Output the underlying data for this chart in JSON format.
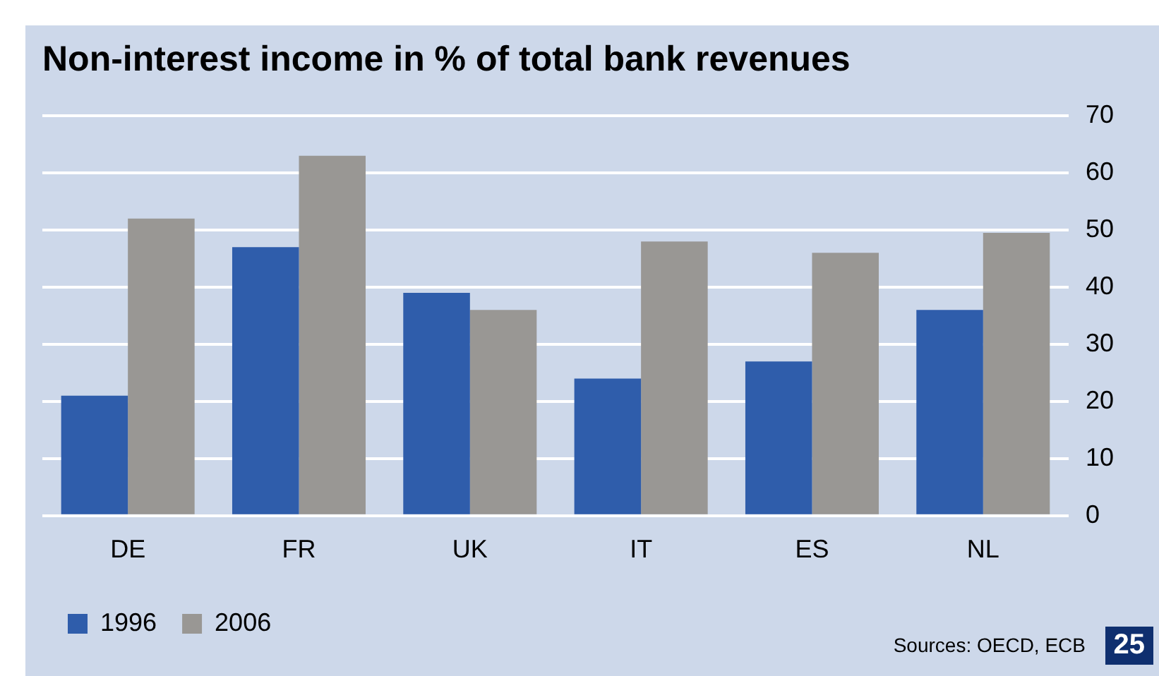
{
  "chart_data": {
    "type": "bar",
    "title": "Non-interest income in % of total bank revenues",
    "categories": [
      "DE",
      "FR",
      "UK",
      "IT",
      "ES",
      "NL"
    ],
    "series": [
      {
        "name": "1996",
        "color": "#2f5dab",
        "values": [
          21,
          47,
          39,
          24,
          27,
          36
        ]
      },
      {
        "name": "2006",
        "color": "#999794",
        "values": [
          52,
          63,
          36,
          48,
          46,
          49.5
        ]
      }
    ],
    "ylim": [
      0,
      70
    ],
    "yticks": [
      0,
      10,
      20,
      30,
      40,
      50,
      60,
      70
    ],
    "grid": "y",
    "legend": "bottom left",
    "annotations": [
      "Sources: OECD, ECB",
      "25"
    ]
  }
}
